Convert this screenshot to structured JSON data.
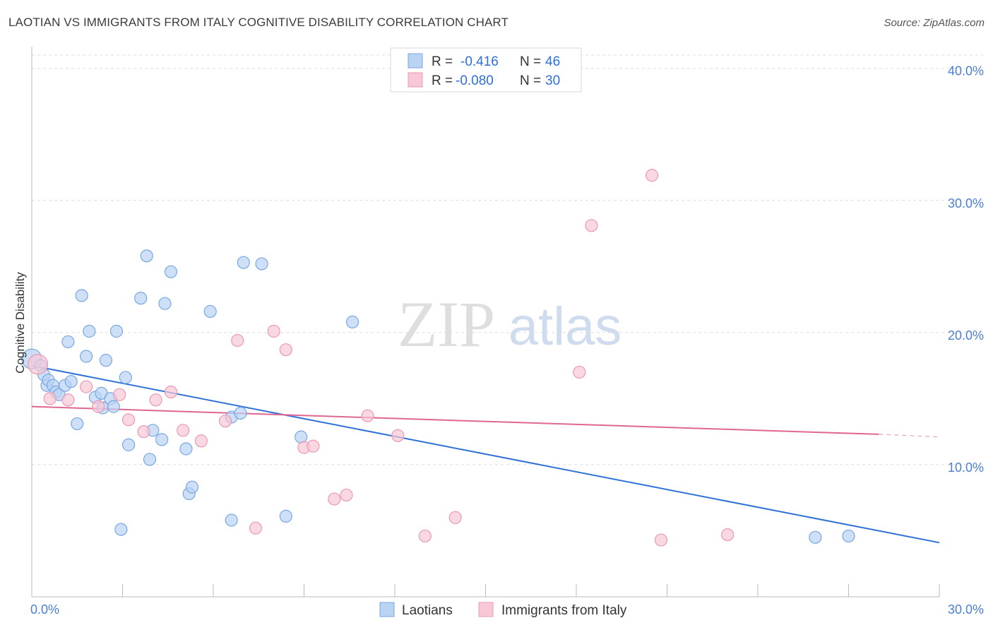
{
  "title": "LAOTIAN VS IMMIGRANTS FROM ITALY COGNITIVE DISABILITY CORRELATION CHART",
  "source": "Source: ZipAtlas.com",
  "watermark": {
    "zip": "ZIP",
    "atlas": "atlas"
  },
  "legend_top": {
    "row1": {
      "r_label": "R =",
      "r_value": "-0.416",
      "n_label": "N =",
      "n_value": "46"
    },
    "row2": {
      "r_label": "R =",
      "r_value": "-0.080",
      "n_label": "N =",
      "n_value": "30"
    }
  },
  "legend_bottom": {
    "series1": "Laotians",
    "series2": "Immigrants from Italy"
  },
  "colors": {
    "blue_fill": "#b9d3f3",
    "blue_stroke": "#7aa7e0",
    "blue_line": "#2f72d6",
    "pink_fill": "#f8c8d6",
    "pink_stroke": "#e99ab2",
    "pink_line": "#e0678f",
    "tick": "#4a7fd0",
    "grid": "#dddddd"
  },
  "chart_data": {
    "type": "scatter",
    "title": "LAOTIAN VS IMMIGRANTS FROM ITALY COGNITIVE DISABILITY CORRELATION CHART",
    "xlabel": "",
    "ylabel": "Cognitive Disability",
    "xlim": [
      0,
      30
    ],
    "ylim": [
      0,
      41
    ],
    "x_tick_labels": [
      "0.0%",
      "30.0%"
    ],
    "y_ticks": [
      10,
      20,
      30,
      40
    ],
    "y_tick_labels": [
      "10.0%",
      "20.0%",
      "30.0%",
      "40.0%"
    ],
    "grid": true,
    "legend_position": "bottom",
    "series": [
      {
        "name": "Laotians",
        "color": "#b9d3f3",
        "r": -0.416,
        "n": 46,
        "points": [
          [
            0.0,
            18.0
          ],
          [
            0.3,
            17.5
          ],
          [
            0.4,
            16.8
          ],
          [
            0.5,
            16.0
          ],
          [
            0.55,
            16.4
          ],
          [
            0.7,
            16.0
          ],
          [
            0.8,
            15.5
          ],
          [
            0.9,
            15.3
          ],
          [
            1.1,
            16.0
          ],
          [
            1.3,
            16.3
          ],
          [
            1.2,
            19.3
          ],
          [
            1.5,
            13.1
          ],
          [
            1.65,
            22.8
          ],
          [
            1.8,
            18.2
          ],
          [
            1.9,
            20.1
          ],
          [
            2.1,
            15.1
          ],
          [
            2.3,
            15.4
          ],
          [
            2.35,
            14.3
          ],
          [
            2.45,
            17.9
          ],
          [
            2.6,
            15.0
          ],
          [
            2.7,
            14.4
          ],
          [
            2.8,
            20.1
          ],
          [
            3.1,
            16.6
          ],
          [
            3.2,
            11.5
          ],
          [
            3.6,
            22.6
          ],
          [
            3.8,
            25.8
          ],
          [
            3.9,
            10.4
          ],
          [
            4.0,
            12.6
          ],
          [
            4.3,
            11.9
          ],
          [
            4.4,
            22.2
          ],
          [
            4.6,
            24.6
          ],
          [
            5.1,
            11.2
          ],
          [
            5.2,
            7.8
          ],
          [
            5.3,
            8.3
          ],
          [
            5.9,
            21.6
          ],
          [
            6.6,
            5.8
          ],
          [
            6.6,
            13.6
          ],
          [
            6.9,
            13.9
          ],
          [
            7.0,
            25.3
          ],
          [
            7.6,
            25.2
          ],
          [
            8.4,
            6.1
          ],
          [
            8.9,
            12.1
          ],
          [
            10.6,
            20.8
          ],
          [
            2.95,
            5.1
          ],
          [
            25.9,
            4.5
          ],
          [
            27.0,
            4.6
          ]
        ]
      },
      {
        "name": "Immigrants from Italy",
        "color": "#f8c8d6",
        "r": -0.08,
        "n": 30,
        "points": [
          [
            0.2,
            17.6
          ],
          [
            0.6,
            15.0
          ],
          [
            1.2,
            14.9
          ],
          [
            1.8,
            15.9
          ],
          [
            2.2,
            14.4
          ],
          [
            2.9,
            15.3
          ],
          [
            3.2,
            13.4
          ],
          [
            3.7,
            12.5
          ],
          [
            4.1,
            14.9
          ],
          [
            4.6,
            15.5
          ],
          [
            5.0,
            12.6
          ],
          [
            5.6,
            11.8
          ],
          [
            6.4,
            13.3
          ],
          [
            6.8,
            19.4
          ],
          [
            7.4,
            5.2
          ],
          [
            8.0,
            20.1
          ],
          [
            8.4,
            18.7
          ],
          [
            9.0,
            11.3
          ],
          [
            9.3,
            11.4
          ],
          [
            10.0,
            7.4
          ],
          [
            10.4,
            7.7
          ],
          [
            11.1,
            13.7
          ],
          [
            12.1,
            12.2
          ],
          [
            13.0,
            4.6
          ],
          [
            14.0,
            6.0
          ],
          [
            18.1,
            17.0
          ],
          [
            18.5,
            28.1
          ],
          [
            20.5,
            31.9
          ],
          [
            20.8,
            4.3
          ],
          [
            23.0,
            4.7
          ]
        ]
      }
    ],
    "trendlines": [
      {
        "series": "Laotians",
        "x": [
          0,
          30
        ],
        "y": [
          17.5,
          4.1
        ]
      },
      {
        "series": "Immigrants from Italy",
        "x": [
          0,
          28.0
        ],
        "y": [
          14.4,
          12.3
        ],
        "dashed_to": [
          30,
          12.1
        ]
      }
    ]
  }
}
